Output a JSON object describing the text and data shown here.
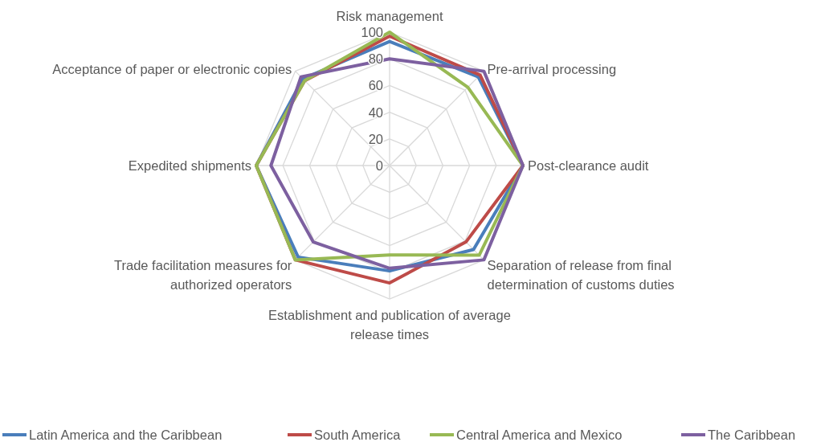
{
  "chart_data": {
    "type": "radar",
    "categories": [
      "Risk management",
      "Pre-arrival processing",
      "Post-clearance audit",
      "Separation of release from final determination of customs duties",
      "Establishment and publication of average release times",
      "Trade facilitation measures for authorized operators",
      "Expedited shipments",
      "Acceptance of paper or electronic copies"
    ],
    "series": [
      {
        "name": "Latin America and the Caribbean",
        "color": "#4a7ebb",
        "values": [
          93,
          94,
          100,
          89,
          79,
          97,
          100,
          92
        ]
      },
      {
        "name": "South America",
        "color": "#be4b48",
        "values": [
          97,
          96,
          100,
          81,
          88,
          100,
          100,
          90
        ]
      },
      {
        "name": "Central America and Mexico",
        "color": "#98b954",
        "values": [
          100,
          83,
          100,
          95,
          67,
          100,
          100,
          90
        ]
      },
      {
        "name": "The Caribbean",
        "color": "#7d60a0",
        "values": [
          80,
          100,
          100,
          100,
          77,
          81,
          89,
          94
        ]
      }
    ],
    "ylim": [
      0,
      100
    ],
    "yticks": [
      0,
      20,
      40,
      60,
      80,
      100
    ],
    "grid": true,
    "legend": "bottom"
  }
}
